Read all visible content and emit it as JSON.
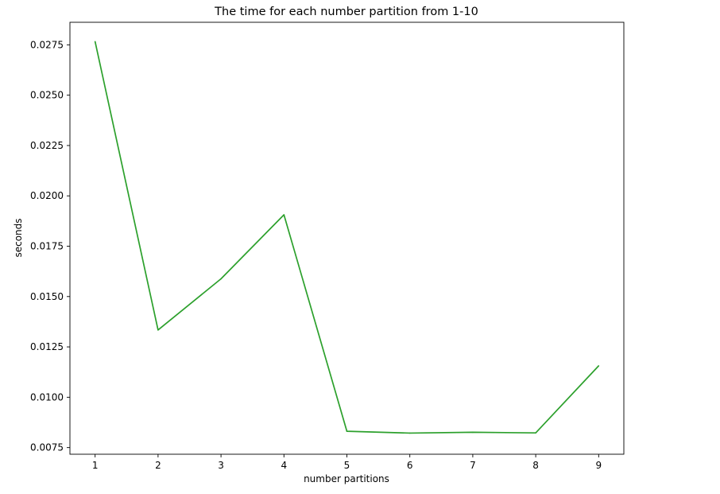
{
  "chart_data": {
    "type": "line",
    "title": "The time for each number partition from 1-10",
    "xlabel": "number partitions",
    "ylabel": "seconds",
    "x": [
      1,
      2,
      3,
      4,
      5,
      6,
      7,
      8,
      9
    ],
    "series": [
      {
        "color": "#2ca02c",
        "values": [
          0.02766,
          0.01334,
          0.01588,
          0.01906,
          0.00831,
          0.00822,
          0.00826,
          0.00823,
          0.01156
        ]
      }
    ],
    "xticks": [
      "1",
      "2",
      "3",
      "4",
      "5",
      "6",
      "7",
      "8",
      "9"
    ],
    "yticks": [
      "0.0075",
      "0.0100",
      "0.0125",
      "0.0150",
      "0.0175",
      "0.0200",
      "0.0225",
      "0.0250",
      "0.0275"
    ],
    "xlim": [
      0.6,
      9.4
    ],
    "ylim": [
      0.00717,
      0.02862
    ],
    "grid": false,
    "legend": "none"
  }
}
